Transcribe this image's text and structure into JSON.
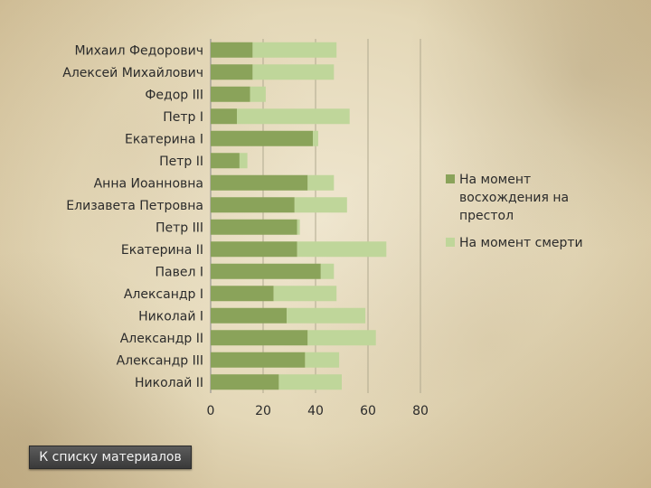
{
  "chart_data": {
    "type": "bar",
    "orientation": "horizontal",
    "stacked": true,
    "categories": [
      "Михаил Федорович",
      "Алексей Михайлович",
      "Федор III",
      "Петр I",
      "Екатерина I",
      "Петр II",
      "Анна Иоанновна",
      "Елизавета Петровна",
      "Петр III",
      "Екатерина II",
      "Павел I",
      "Александр I",
      "Николай I",
      "Александр II",
      "Александр III",
      "Николай II"
    ],
    "series": [
      {
        "name": "На момент восхождения на престол",
        "color": "#8aa35a",
        "values": [
          16,
          16,
          15,
          10,
          39,
          11,
          37,
          32,
          33,
          33,
          42,
          24,
          29,
          37,
          36,
          26
        ]
      },
      {
        "name": "На момент смерти",
        "color": "#bfd69a",
        "values": [
          32,
          31,
          6,
          43,
          2,
          3,
          10,
          20,
          1,
          34,
          5,
          24,
          30,
          26,
          13,
          24
        ]
      }
    ],
    "xticks": [
      "0",
      "20",
      "40",
      "60",
      "80"
    ],
    "xlim": [
      0,
      80
    ],
    "grid": "vertical",
    "legend_position": "right"
  },
  "button": {
    "label": "К списку материалов"
  }
}
